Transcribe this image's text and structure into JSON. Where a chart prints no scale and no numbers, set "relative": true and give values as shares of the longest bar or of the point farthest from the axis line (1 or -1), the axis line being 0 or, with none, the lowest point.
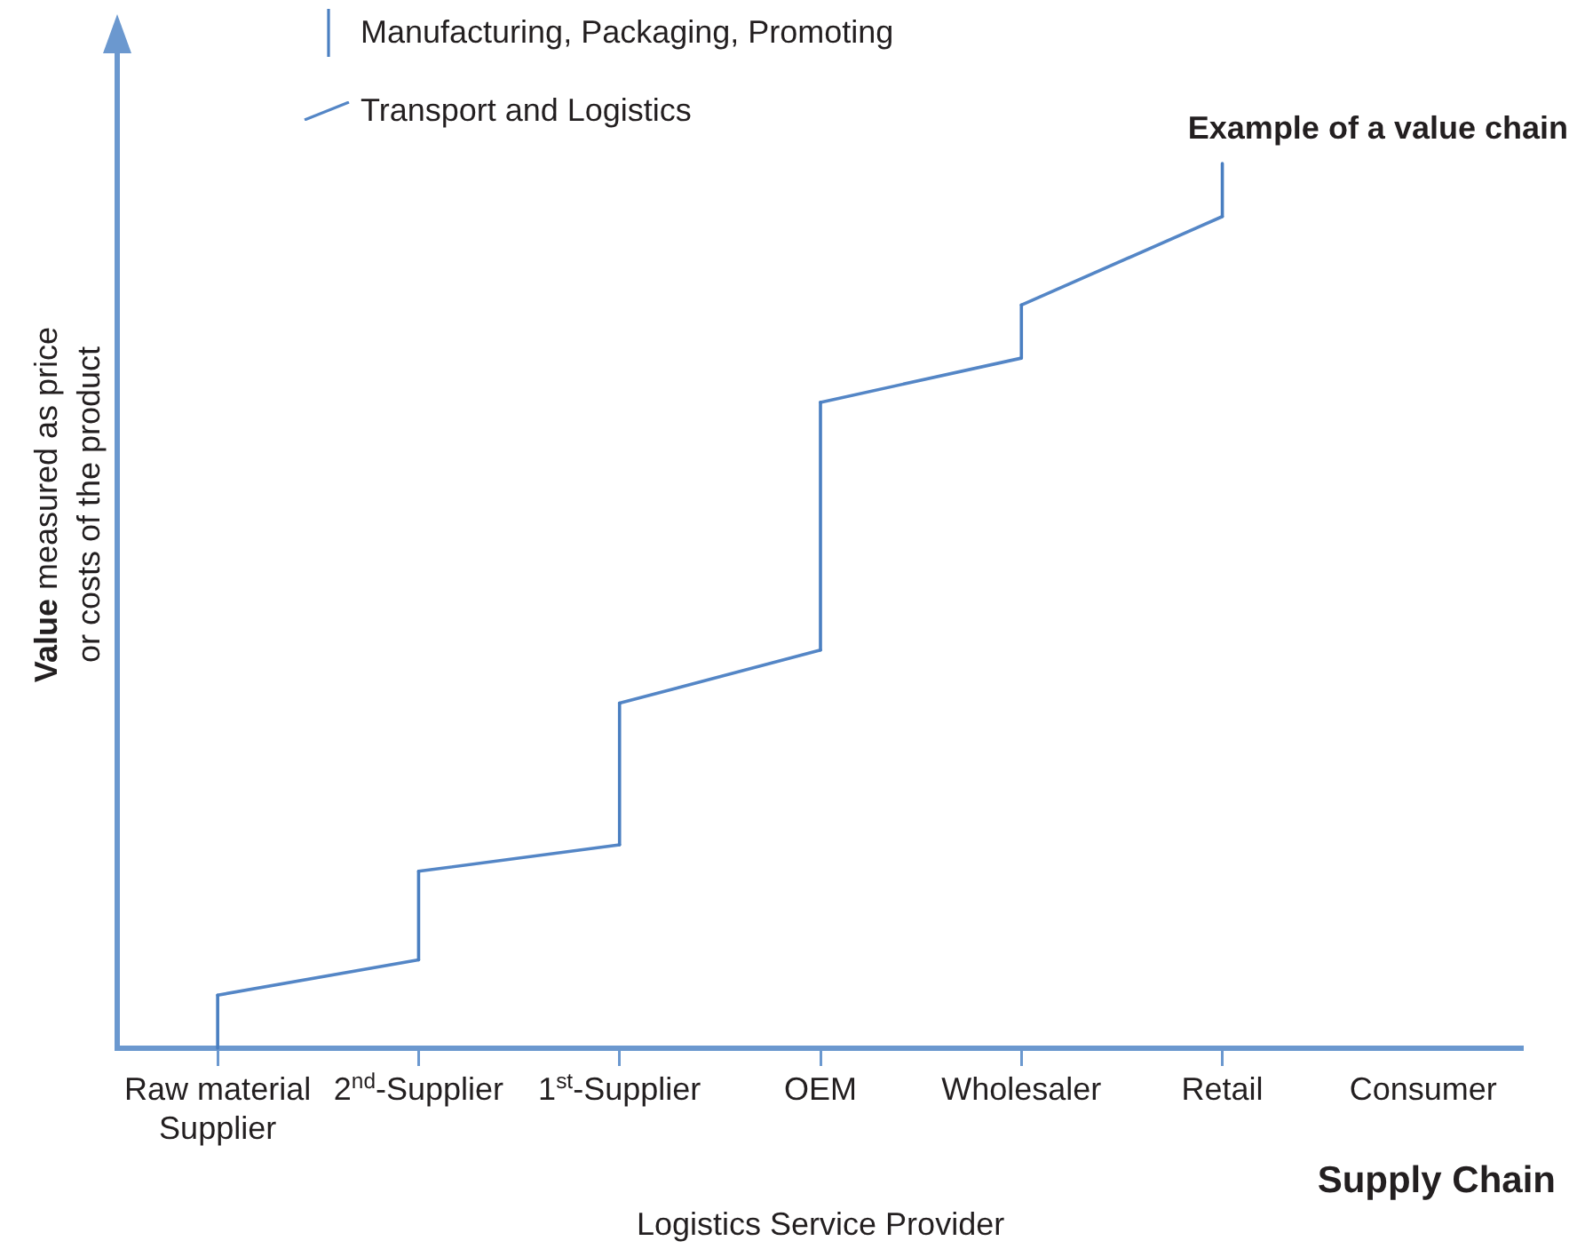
{
  "chart_data": {
    "type": "line",
    "title": "Example of a value chain",
    "xlabel": "Supply Chain",
    "ylabel": "Value measured as price or costs of the product",
    "annotations": [
      "Logistics Service Provider"
    ],
    "categories": [
      "Raw material Supplier",
      "2$^{nd}$-Supplier",
      "1$^{st}$-Supplier",
      "OEM",
      "Wholesaler",
      "Retail",
      "Consumer"
    ],
    "relative": true,
    "legend": "top left",
    "marker": "none",
    "line_style": "solid",
    "series": [
      {
        "name": "Manufacturing, Packaging, Promoting",
        "color": "#4a7fc1",
        "x": [
          "Raw material Supplier",
          "Raw material Supplier",
          "Raw material Supplier",
          "2$^{nd}$-Supplier",
          "2$^{nd}$-Supplier",
          "2$^{nd}$-Supplier",
          "1$^{st}$-Supplier",
          "1$^{st}$-Supplier",
          "1$^{st}$-Supplier",
          "OEM",
          "OEM",
          "OEM",
          "Wholesaler",
          "Wholesaler",
          "Wholesaler",
          "Retail",
          "Retail"
        ],
        "values": [
          0,
          0.06,
          null,
          0.1,
          0.2,
          null,
          0.23,
          0.39,
          null,
          0.45,
          0.73,
          null,
          0.78,
          0.84,
          null,
          0.94,
          1
        ]
      },
      {
        "name": "Transport and Logistics",
        "color": "#5486c6",
        "x": [
          "Raw material Supplier",
          "2$^{nd}$-Supplier",
          "2$^{nd}$-Supplier",
          "2$^{nd}$-Supplier",
          "1$^{st}$-Supplier",
          "1$^{st}$-Supplier",
          "1$^{st}$-Supplier",
          "OEM",
          "OEM",
          "OEM",
          "Wholesaler",
          "Wholesaler",
          "Wholesaler",
          "Retail"
        ],
        "values": [
          0.06,
          0.1,
          null,
          0.2,
          0.23,
          null,
          0.39,
          0.45,
          null,
          0.73,
          0.78,
          null,
          0.84,
          0.94
        ]
      }
    ]
  }
}
